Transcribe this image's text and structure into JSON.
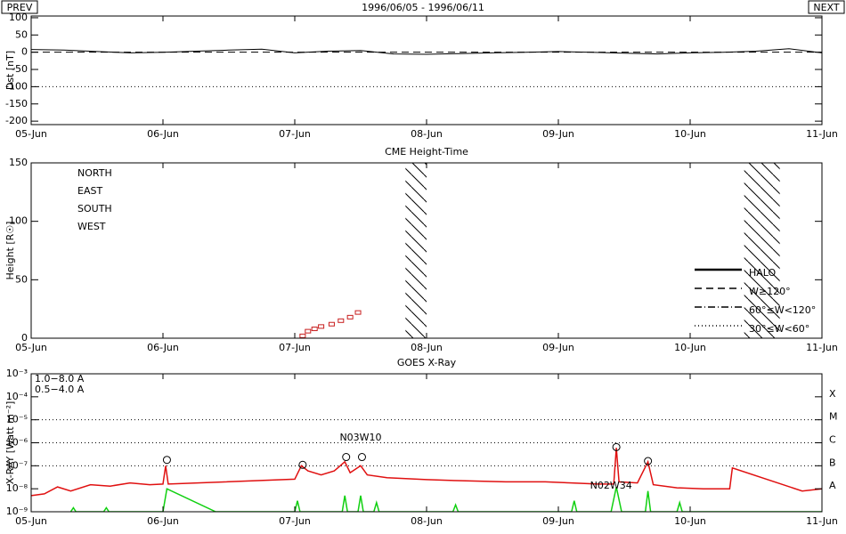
{
  "header": {
    "prev": "PREV",
    "title": "1996/06/05 - 1996/06/11",
    "next": "NEXT"
  },
  "chart_data": [
    {
      "type": "line",
      "ylabel": "Dst [nT]",
      "xlim": [
        0,
        6
      ],
      "xticks": [
        {
          "value": 0,
          "label": "05-Jun"
        },
        {
          "value": 1,
          "label": "06-Jun"
        },
        {
          "value": 2,
          "label": "07-Jun"
        },
        {
          "value": 3,
          "label": "08-Jun"
        },
        {
          "value": 4,
          "label": "09-Jun"
        },
        {
          "value": 5,
          "label": "10-Jun"
        },
        {
          "value": 6,
          "label": "11-Jun"
        }
      ],
      "ylim": [
        -210,
        105
      ],
      "yticks": [
        100,
        50,
        0,
        -50,
        -100,
        -150,
        -200
      ],
      "hlines": [
        {
          "value": 0,
          "dash": "dashed"
        },
        {
          "value": -100,
          "dash": "dotted"
        }
      ],
      "series": [
        {
          "color": "#000000",
          "x": [
            0,
            0.25,
            0.5,
            0.75,
            1,
            1.25,
            1.5,
            1.75,
            2,
            2.25,
            2.5,
            2.75,
            3,
            3.25,
            3.5,
            3.75,
            4,
            4.25,
            4.5,
            4.75,
            5,
            5.25,
            5.5,
            5.75,
            6
          ],
          "values": [
            8,
            6,
            2,
            -2,
            0,
            3,
            6,
            9,
            -2,
            3,
            5,
            -5,
            -6,
            -4,
            -2,
            0,
            2,
            0,
            -3,
            -5,
            -2,
            0,
            3,
            10,
            -2
          ]
        }
      ]
    },
    {
      "type": "scatter",
      "title": "CME Height-Time",
      "ylabel": "Height [R☉]",
      "xlim": [
        0,
        6
      ],
      "xticks": [
        {
          "value": 0,
          "label": "05-Jun"
        },
        {
          "value": 1,
          "label": "06-Jun"
        },
        {
          "value": 2,
          "label": "07-Jun"
        },
        {
          "value": 3,
          "label": "08-Jun"
        },
        {
          "value": 4,
          "label": "09-Jun"
        },
        {
          "value": 5,
          "label": "10-Jun"
        },
        {
          "value": 6,
          "label": "11-Jun"
        }
      ],
      "ylim": [
        0,
        150
      ],
      "yticks": [
        0,
        50,
        100,
        150
      ],
      "hatched_ranges": [
        [
          2.84,
          3.0
        ],
        [
          5.41,
          5.68
        ]
      ],
      "series": [
        {
          "name": "NORTH",
          "color": "#22b022",
          "x": [],
          "values": []
        },
        {
          "name": "EAST",
          "color": "#1a1aa8",
          "x": [],
          "values": []
        },
        {
          "name": "SOUTH",
          "color": "#a020c0",
          "x": [],
          "values": []
        },
        {
          "name": "WEST",
          "color": "#c81e1e",
          "x": [
            2.06,
            2.1,
            2.15,
            2.2,
            2.28,
            2.35,
            2.42,
            2.48
          ],
          "values": [
            2,
            6,
            8,
            10,
            12,
            15,
            18,
            22
          ]
        }
      ],
      "line_styles": [
        {
          "name": "HALO",
          "dash": "solid"
        },
        {
          "name": "W≥120°",
          "dash": "dashed"
        },
        {
          "name": "60°≤W<120°",
          "dash": "dashdot"
        },
        {
          "name": "30°≤W<60°",
          "dash": "dotted"
        }
      ]
    },
    {
      "type": "line",
      "title": "GOES X-Ray",
      "ylabel": "X-RAY [Watt m⁻²]",
      "log_scale": true,
      "xlim": [
        0,
        6
      ],
      "xticks": [
        {
          "value": 0,
          "label": "05-Jun"
        },
        {
          "value": 1,
          "label": "06-Jun"
        },
        {
          "value": 2,
          "label": "07-Jun"
        },
        {
          "value": 3,
          "label": "08-Jun"
        },
        {
          "value": 4,
          "label": "09-Jun"
        },
        {
          "value": 5,
          "label": "10-Jun"
        },
        {
          "value": 6,
          "label": "11-Jun"
        }
      ],
      "ylim": [
        1e-09,
        0.001
      ],
      "yticks": [
        {
          "value": 0.001,
          "label": "10⁻³"
        },
        {
          "value": 0.0001,
          "label": "10⁻⁴"
        },
        {
          "value": 1e-05,
          "label": "10⁻⁵"
        },
        {
          "value": 1e-06,
          "label": "10⁻⁶"
        },
        {
          "value": 1e-07,
          "label": "10⁻⁷"
        },
        {
          "value": 1e-08,
          "label": "10⁻⁸"
        },
        {
          "value": 1e-09,
          "label": "10⁻⁹"
        }
      ],
      "class_levels": [
        {
          "value": 0.0001,
          "label": "X"
        },
        {
          "value": 1e-05,
          "label": "M"
        },
        {
          "value": 1e-06,
          "label": "C"
        },
        {
          "value": 1e-07,
          "label": "B"
        },
        {
          "value": 1e-08,
          "label": "A"
        }
      ],
      "hlines": [
        {
          "value": 1e-05,
          "dash": "dotted"
        },
        {
          "value": 1e-06,
          "dash": "dotted"
        },
        {
          "value": 1e-07,
          "dash": "dotted"
        }
      ],
      "series": [
        {
          "name": "1.0−8.0 A",
          "color": "#e01010",
          "x": [
            0,
            0.1,
            0.2,
            0.3,
            0.45,
            0.6,
            0.75,
            0.9,
            1.0,
            1.02,
            1.04,
            2.0,
            2.05,
            2.1,
            2.2,
            2.3,
            2.38,
            2.42,
            2.5,
            2.55,
            2.7,
            3.0,
            3.3,
            3.6,
            3.9,
            4.1,
            4.3,
            4.42,
            4.44,
            4.46,
            4.6,
            4.68,
            4.72,
            4.9,
            5.1,
            5.3,
            5.32,
            5.85,
            6.0
          ],
          "values": [
            5e-09,
            6e-09,
            1.2e-08,
            8e-09,
            1.5e-08,
            1.3e-08,
            1.8e-08,
            1.5e-08,
            1.6e-08,
            1e-07,
            1.6e-08,
            2.6e-08,
            1e-07,
            6e-08,
            4e-08,
            6e-08,
            1.5e-07,
            5e-08,
            1e-07,
            4e-08,
            3e-08,
            2.5e-08,
            2.2e-08,
            2e-08,
            2e-08,
            1.8e-08,
            1.6e-08,
            1.6e-08,
            6e-07,
            2e-08,
            1.8e-08,
            1.5e-07,
            1.5e-08,
            1.1e-08,
            1e-08,
            1e-08,
            8e-08,
            8e-09,
            1e-08
          ]
        },
        {
          "name": "0.5−4.0 A",
          "color": "#10d010",
          "x": [
            0.3,
            0.32,
            0.34,
            0.55,
            0.57,
            0.59,
            1.0,
            1.03,
            1.4,
            2.0,
            2.02,
            2.04,
            2.36,
            2.38,
            2.4,
            2.48,
            2.5,
            2.52,
            2.6,
            2.62,
            2.64,
            3.2,
            3.22,
            3.24,
            4.1,
            4.12,
            4.14,
            4.4,
            4.44,
            4.48,
            4.66,
            4.68,
            4.7,
            4.9,
            4.92,
            4.94,
            6.0
          ],
          "values": [
            1e-09,
            1.5e-09,
            1e-09,
            1e-09,
            1.5e-09,
            1e-09,
            1e-09,
            1e-08,
            1e-09,
            1e-09,
            3e-09,
            1e-09,
            1e-09,
            5e-09,
            1e-09,
            1e-09,
            5e-09,
            1e-09,
            1e-09,
            2.5e-09,
            1e-09,
            1e-09,
            2e-09,
            1e-09,
            1e-09,
            3e-09,
            1e-09,
            1e-09,
            1.2e-08,
            1e-09,
            1e-09,
            8e-09,
            1e-09,
            1e-09,
            2.5e-09,
            1e-09,
            1e-09
          ]
        }
      ],
      "flares": {
        "x": [
          1.03,
          2.06,
          2.39,
          2.51,
          4.44,
          4.68
        ],
        "values": [
          1.8e-07,
          1.1e-07,
          2.4e-07,
          2.4e-07,
          6.5e-07,
          1.6e-07
        ]
      },
      "annotations": [
        {
          "text": "N03W10",
          "x": 2.5,
          "value": 1.6e-06
        },
        {
          "text": "N02W34",
          "x": 4.4,
          "value": 1.3e-08
        }
      ]
    }
  ]
}
